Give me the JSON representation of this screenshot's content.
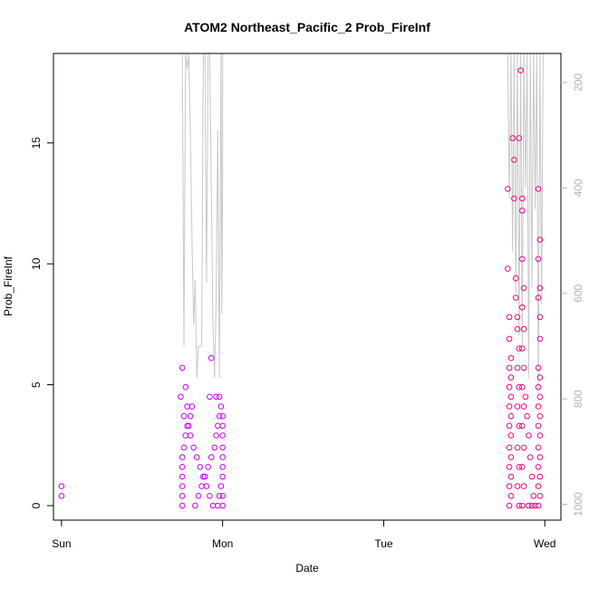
{
  "chart_data": {
    "type": "scatter",
    "title": "ATOM2 Northeast_Pacific_2 Prob_FireInf",
    "xlabel": "Date",
    "ylabel": "Prob_FireInf",
    "x_categories": [
      "Sun",
      "Mon",
      "Tue",
      "Wed"
    ],
    "xlim": [
      -0.05,
      3.1
    ],
    "ylim": [
      -0.6,
      18.7
    ],
    "y_ticks": [
      0,
      5,
      10,
      15
    ],
    "y2_ticks": [
      200,
      400,
      600,
      800,
      1000
    ],
    "y2lim": [
      1030,
      145
    ],
    "grid": false,
    "colors": {
      "marker_low": "#cc00ff",
      "marker_high": "#ff0080",
      "line": "#c8c8c8",
      "axis": "#000000",
      "axis_right": "#b3b3b3"
    },
    "series": [
      {
        "marker": "circle-open",
        "points": [
          [
            0.0,
            0.4
          ],
          [
            0.0,
            0.8
          ],
          [
            0.75,
            5.7
          ],
          [
            0.77,
            4.9
          ],
          [
            0.74,
            4.5
          ],
          [
            0.78,
            4.1
          ],
          [
            0.76,
            3.7
          ],
          [
            0.79,
            3.3
          ],
          [
            0.8,
            2.9
          ],
          [
            0.82,
            2.4
          ],
          [
            0.84,
            2.0
          ],
          [
            0.86,
            1.6
          ],
          [
            0.88,
            1.2
          ],
          [
            0.9,
            0.8
          ],
          [
            0.92,
            0.4
          ],
          [
            0.94,
            0.0
          ],
          [
            0.75,
            0.0
          ],
          [
            0.75,
            0.4
          ],
          [
            0.75,
            0.8
          ],
          [
            0.75,
            1.2
          ],
          [
            0.75,
            1.6
          ],
          [
            0.75,
            2.0
          ],
          [
            0.76,
            2.4
          ],
          [
            0.77,
            2.9
          ],
          [
            0.78,
            3.3
          ],
          [
            0.8,
            3.7
          ],
          [
            0.81,
            4.1
          ],
          [
            0.83,
            0.0
          ],
          [
            0.85,
            0.4
          ],
          [
            0.87,
            0.8
          ],
          [
            0.89,
            1.2
          ],
          [
            0.91,
            1.6
          ],
          [
            0.93,
            2.0
          ],
          [
            0.95,
            2.4
          ],
          [
            0.96,
            2.9
          ],
          [
            0.97,
            3.3
          ],
          [
            0.98,
            3.7
          ],
          [
            0.99,
            4.1
          ],
          [
            0.98,
            4.5
          ],
          [
            0.96,
            4.5
          ],
          [
            0.92,
            4.5
          ],
          [
            0.93,
            6.1
          ],
          [
            0.97,
            0.0
          ],
          [
            0.98,
            0.4
          ],
          [
            0.99,
            0.8
          ],
          [
            1.0,
            1.2
          ],
          [
            1.0,
            1.6
          ],
          [
            1.0,
            2.0
          ],
          [
            1.0,
            2.4
          ],
          [
            1.0,
            2.9
          ],
          [
            1.0,
            3.3
          ],
          [
            1.0,
            3.7
          ],
          [
            1.0,
            0.0
          ],
          [
            1.0,
            0.4
          ],
          [
            2.77,
            13.1
          ],
          [
            2.77,
            9.8
          ],
          [
            2.78,
            7.8
          ],
          [
            2.78,
            6.9
          ],
          [
            2.79,
            6.1
          ],
          [
            2.78,
            5.7
          ],
          [
            2.79,
            5.3
          ],
          [
            2.78,
            4.9
          ],
          [
            2.79,
            4.5
          ],
          [
            2.78,
            4.1
          ],
          [
            2.79,
            3.7
          ],
          [
            2.78,
            3.3
          ],
          [
            2.79,
            2.9
          ],
          [
            2.78,
            2.4
          ],
          [
            2.79,
            2.0
          ],
          [
            2.78,
            1.6
          ],
          [
            2.79,
            1.2
          ],
          [
            2.78,
            0.8
          ],
          [
            2.79,
            0.4
          ],
          [
            2.78,
            0.0
          ],
          [
            2.8,
            15.2
          ],
          [
            2.81,
            14.3
          ],
          [
            2.81,
            12.7
          ],
          [
            2.82,
            9.4
          ],
          [
            2.82,
            8.6
          ],
          [
            2.83,
            7.8
          ],
          [
            2.83,
            7.3
          ],
          [
            2.84,
            6.5
          ],
          [
            2.83,
            5.7
          ],
          [
            2.84,
            4.9
          ],
          [
            2.83,
            4.1
          ],
          [
            2.84,
            3.3
          ],
          [
            2.83,
            2.4
          ],
          [
            2.84,
            1.6
          ],
          [
            2.83,
            0.8
          ],
          [
            2.84,
            0.0
          ],
          [
            2.84,
            15.2
          ],
          [
            2.85,
            18.0
          ],
          [
            2.86,
            12.7
          ],
          [
            2.86,
            12.2
          ],
          [
            2.86,
            10.2
          ],
          [
            2.87,
            9.0
          ],
          [
            2.86,
            8.2
          ],
          [
            2.87,
            7.3
          ],
          [
            2.86,
            6.5
          ],
          [
            2.87,
            5.7
          ],
          [
            2.86,
            4.9
          ],
          [
            2.87,
            4.1
          ],
          [
            2.86,
            3.3
          ],
          [
            2.87,
            2.4
          ],
          [
            2.86,
            1.6
          ],
          [
            2.87,
            0.8
          ],
          [
            2.86,
            0.0
          ],
          [
            2.88,
            4.5
          ],
          [
            2.89,
            3.7
          ],
          [
            2.9,
            2.9
          ],
          [
            2.91,
            2.0
          ],
          [
            2.92,
            1.2
          ],
          [
            2.93,
            0.4
          ],
          [
            2.94,
            0.0
          ],
          [
            2.9,
            0.0
          ],
          [
            2.92,
            0.0
          ],
          [
            2.96,
            13.1
          ],
          [
            2.97,
            11.0
          ],
          [
            2.96,
            10.2
          ],
          [
            2.97,
            9.0
          ],
          [
            2.96,
            8.6
          ],
          [
            2.97,
            7.8
          ],
          [
            2.97,
            6.9
          ],
          [
            2.96,
            5.7
          ],
          [
            2.97,
            5.3
          ],
          [
            2.96,
            4.9
          ],
          [
            2.97,
            4.5
          ],
          [
            2.96,
            4.1
          ],
          [
            2.97,
            3.7
          ],
          [
            2.96,
            3.3
          ],
          [
            2.97,
            2.9
          ],
          [
            2.96,
            2.4
          ],
          [
            2.97,
            2.0
          ],
          [
            2.96,
            1.6
          ],
          [
            2.97,
            1.2
          ],
          [
            2.96,
            0.8
          ],
          [
            2.97,
            0.4
          ],
          [
            2.96,
            0.0
          ]
        ]
      },
      {
        "marker": "line",
        "axis": "right",
        "points": [
          [
            0.75,
            145
          ],
          [
            0.76,
            700
          ],
          [
            0.77,
            145
          ],
          [
            0.78,
            175
          ],
          [
            0.79,
            145
          ],
          [
            0.8,
            300
          ],
          [
            0.81,
            500
          ],
          [
            0.82,
            660
          ],
          [
            0.83,
            575
          ],
          [
            0.84,
            760
          ],
          [
            0.85,
            700
          ],
          [
            0.86,
            700
          ],
          [
            0.87,
            700
          ],
          [
            0.88,
            145
          ],
          [
            0.89,
            145
          ],
          [
            0.9,
            580
          ],
          [
            0.91,
            145
          ],
          [
            0.92,
            145
          ],
          [
            0.93,
            400
          ],
          [
            0.94,
            660
          ],
          [
            0.95,
            760
          ],
          [
            0.96,
            600
          ],
          [
            0.97,
            290
          ],
          [
            0.98,
            760
          ],
          [
            0.99,
            145
          ],
          [
            0.995,
            640
          ],
          [
            1.0,
            380
          ],
          [
            1.0,
            145
          ],
          [
            2.77,
            145
          ],
          [
            2.78,
            420
          ],
          [
            2.79,
            145
          ],
          [
            2.8,
            520
          ],
          [
            2.81,
            145
          ],
          [
            2.82,
            600
          ],
          [
            2.83,
            145
          ],
          [
            2.84,
            680
          ],
          [
            2.85,
            145
          ],
          [
            2.86,
            700
          ],
          [
            2.87,
            145
          ],
          [
            2.88,
            400
          ],
          [
            2.89,
            145
          ],
          [
            2.9,
            760
          ],
          [
            2.91,
            145
          ],
          [
            2.92,
            590
          ],
          [
            2.93,
            145
          ],
          [
            2.94,
            440
          ],
          [
            2.95,
            145
          ],
          [
            2.96,
            790
          ],
          [
            2.97,
            145
          ],
          [
            2.98,
            620
          ],
          [
            2.99,
            145
          ],
          [
            3.0,
            145
          ]
        ]
      }
    ]
  }
}
